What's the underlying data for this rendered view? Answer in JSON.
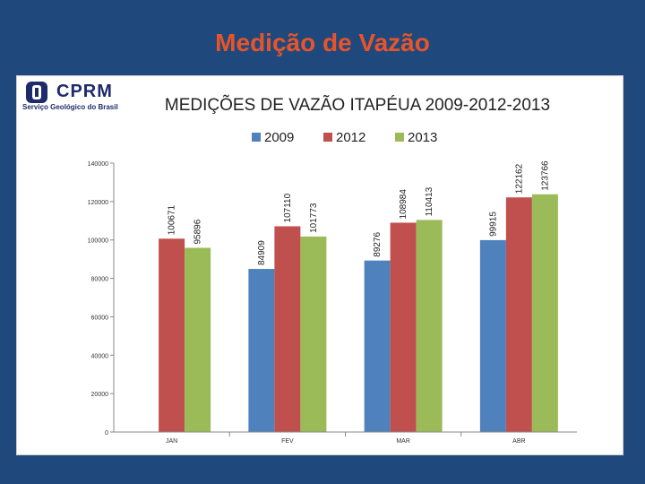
{
  "slide": {
    "title": "Medição de Vazão"
  },
  "logo": {
    "name": "CPRM",
    "subtitle": "Serviço Geológico do Brasil"
  },
  "chart_data": {
    "type": "bar",
    "title": "MEDIÇÕES DE VAZÃO ITAPÉUA 2009-2012-2013",
    "xlabel": "",
    "ylabel": "",
    "categories": [
      "JAN",
      "FEV",
      "MAR",
      "ABR"
    ],
    "series": [
      {
        "name": "2009",
        "color": "#4f81bd",
        "values": [
          null,
          84909,
          89276,
          99915
        ]
      },
      {
        "name": "2012",
        "color": "#c0504d",
        "values": [
          100671,
          107110,
          108984,
          122162
        ]
      },
      {
        "name": "2013",
        "color": "#9bbb59",
        "values": [
          95896,
          101773,
          110413,
          123766
        ]
      }
    ],
    "ylim": [
      0,
      140000
    ],
    "yticks": [
      0,
      20000,
      40000,
      60000,
      80000,
      100000,
      120000,
      140000
    ],
    "legend_position": "top",
    "grid": false
  }
}
